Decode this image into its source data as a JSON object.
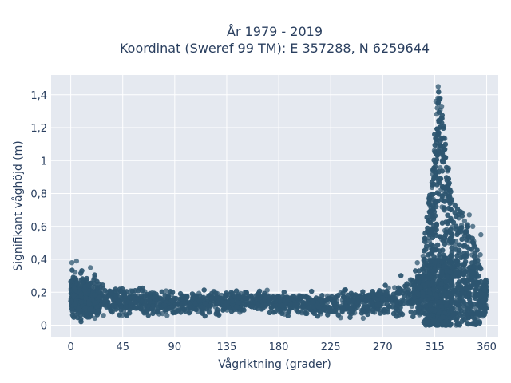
{
  "chart_data": {
    "type": "scatter",
    "title_line1": "År 1979 - 2019",
    "title_line2": "Koordinat (Sweref 99 TM): E 357288, N 6259644",
    "xlabel": "Vågriktning (grader)",
    "ylabel": "Signifikant våghöjd (m)",
    "xlim": [
      -17,
      370
    ],
    "ylim": [
      -0.07,
      1.52
    ],
    "x_ticks": [
      0,
      45,
      90,
      135,
      180,
      225,
      270,
      315,
      360
    ],
    "x_tick_labels": [
      "0",
      "45",
      "90",
      "135",
      "180",
      "225",
      "270",
      "315",
      "360"
    ],
    "y_ticks": [
      0,
      0.2,
      0.4,
      0.6,
      0.8,
      1.0,
      1.2,
      1.4
    ],
    "y_tick_labels": [
      "0",
      "0,2",
      "0,4",
      "0,6",
      "0,8",
      "1",
      "1,2",
      "1,4"
    ],
    "grid": true,
    "marker_color": "#2e5570",
    "plot_bg": "#e5e9f0",
    "envelope": [
      {
        "x": 0,
        "y_min": 0.0,
        "y_max": 0.38
      },
      {
        "x": 10,
        "y_min": 0.0,
        "y_max": 0.36
      },
      {
        "x": 20,
        "y_min": 0.0,
        "y_max": 0.33
      },
      {
        "x": 45,
        "y_min": 0.03,
        "y_max": 0.26
      },
      {
        "x": 90,
        "y_min": 0.05,
        "y_max": 0.24
      },
      {
        "x": 135,
        "y_min": 0.06,
        "y_max": 0.23
      },
      {
        "x": 180,
        "y_min": 0.05,
        "y_max": 0.22
      },
      {
        "x": 225,
        "y_min": 0.03,
        "y_max": 0.24
      },
      {
        "x": 270,
        "y_min": 0.02,
        "y_max": 0.27
      },
      {
        "x": 295,
        "y_min": 0.0,
        "y_max": 0.36
      },
      {
        "x": 305,
        "y_min": 0.0,
        "y_max": 0.45
      },
      {
        "x": 312,
        "y_min": 0.0,
        "y_max": 0.9
      },
      {
        "x": 318,
        "y_min": 0.0,
        "y_max": 1.45
      },
      {
        "x": 322,
        "y_min": 0.0,
        "y_max": 1.3
      },
      {
        "x": 330,
        "y_min": 0.0,
        "y_max": 0.75
      },
      {
        "x": 340,
        "y_min": 0.0,
        "y_max": 0.68
      },
      {
        "x": 350,
        "y_min": 0.0,
        "y_max": 0.5
      },
      {
        "x": 360,
        "y_min": 0.0,
        "y_max": 0.35
      }
    ],
    "outliers": [
      {
        "x": 318,
        "y": 1.45
      },
      {
        "x": 316,
        "y": 1.36
      },
      {
        "x": 321,
        "y": 1.33
      },
      {
        "x": 345,
        "y": 0.67
      },
      {
        "x": 348,
        "y": 0.6
      },
      {
        "x": 355,
        "y": 0.55
      },
      {
        "x": 300,
        "y": 0.38
      },
      {
        "x": 305,
        "y": 0.42
      },
      {
        "x": 310,
        "y": 0.53
      },
      {
        "x": 1,
        "y": 0.38
      },
      {
        "x": 5,
        "y": 0.39
      },
      {
        "x": 17,
        "y": 0.35
      }
    ]
  }
}
